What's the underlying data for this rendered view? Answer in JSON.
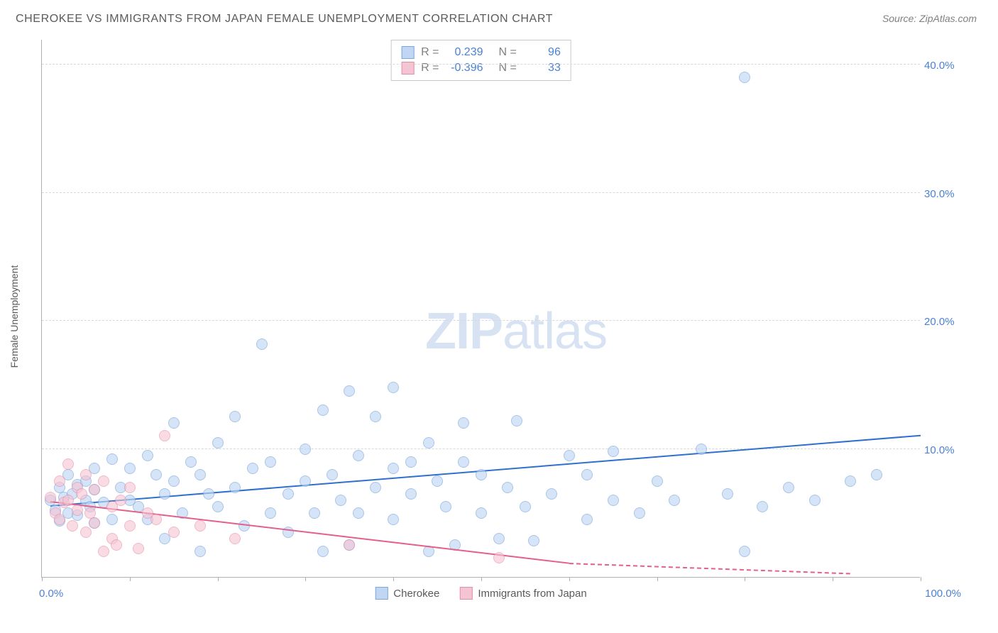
{
  "title": "CHEROKEE VS IMMIGRANTS FROM JAPAN FEMALE UNEMPLOYMENT CORRELATION CHART",
  "source": "Source: ZipAtlas.com",
  "ylabel": "Female Unemployment",
  "watermark_bold": "ZIP",
  "watermark_light": "atlas",
  "chart": {
    "type": "scatter",
    "xlim": [
      0,
      100
    ],
    "ylim": [
      0,
      42
    ],
    "y_ticks": [
      10,
      20,
      30,
      40
    ],
    "y_tick_labels": [
      "10.0%",
      "20.0%",
      "30.0%",
      "40.0%"
    ],
    "x_ticks": [
      0,
      10,
      20,
      30,
      40,
      50,
      60,
      70,
      80,
      90,
      100
    ],
    "x_min_label": "0.0%",
    "x_max_label": "100.0%",
    "background_color": "#ffffff",
    "grid_color": "#d8d8d8",
    "axis_color": "#b0b0b0",
    "tick_label_color": "#4a80d6",
    "point_radius": 8,
    "series": [
      {
        "name": "Cherokee",
        "label": "Cherokee",
        "fill": "#c0d6f2",
        "stroke": "#7aa7de",
        "fill_opacity": 0.65,
        "R": "0.239",
        "N": "96",
        "trend": {
          "x1": 1,
          "y1": 5.5,
          "x2": 100,
          "y2": 11.0,
          "color": "#2f6fd0",
          "dash_from_x": 100
        },
        "points": [
          [
            1,
            6.0
          ],
          [
            1.5,
            5.2
          ],
          [
            2,
            7.0
          ],
          [
            2,
            4.4
          ],
          [
            2.5,
            6.2
          ],
          [
            3,
            5.0
          ],
          [
            3,
            8.0
          ],
          [
            3.5,
            6.5
          ],
          [
            4,
            4.8
          ],
          [
            4,
            7.2
          ],
          [
            5,
            6.0
          ],
          [
            5,
            7.5
          ],
          [
            5.5,
            5.5
          ],
          [
            6,
            8.5
          ],
          [
            6,
            4.2
          ],
          [
            6,
            6.8
          ],
          [
            7,
            5.8
          ],
          [
            8,
            4.5
          ],
          [
            8,
            9.2
          ],
          [
            9,
            7.0
          ],
          [
            10,
            6.0
          ],
          [
            10,
            8.5
          ],
          [
            11,
            5.5
          ],
          [
            12,
            9.5
          ],
          [
            12,
            4.5
          ],
          [
            13,
            8.0
          ],
          [
            14,
            6.5
          ],
          [
            14,
            3.0
          ],
          [
            15,
            7.5
          ],
          [
            15,
            12.0
          ],
          [
            16,
            5.0
          ],
          [
            17,
            9.0
          ],
          [
            18,
            8.0
          ],
          [
            18,
            2.0
          ],
          [
            19,
            6.5
          ],
          [
            20,
            10.5
          ],
          [
            20,
            5.5
          ],
          [
            22,
            12.5
          ],
          [
            22,
            7.0
          ],
          [
            23,
            4.0
          ],
          [
            24,
            8.5
          ],
          [
            25,
            18.2
          ],
          [
            26,
            9.0
          ],
          [
            26,
            5.0
          ],
          [
            28,
            6.5
          ],
          [
            28,
            3.5
          ],
          [
            30,
            10.0
          ],
          [
            30,
            7.5
          ],
          [
            31,
            5.0
          ],
          [
            32,
            13.0
          ],
          [
            32,
            2.0
          ],
          [
            33,
            8.0
          ],
          [
            34,
            6.0
          ],
          [
            35,
            14.5
          ],
          [
            35,
            2.5
          ],
          [
            36,
            9.5
          ],
          [
            36,
            5.0
          ],
          [
            38,
            12.5
          ],
          [
            38,
            7.0
          ],
          [
            40,
            14.8
          ],
          [
            40,
            8.5
          ],
          [
            40,
            4.5
          ],
          [
            42,
            6.5
          ],
          [
            42,
            9.0
          ],
          [
            44,
            10.5
          ],
          [
            44,
            2.0
          ],
          [
            45,
            7.5
          ],
          [
            46,
            5.5
          ],
          [
            47,
            2.5
          ],
          [
            48,
            9.0
          ],
          [
            48,
            12.0
          ],
          [
            50,
            8.0
          ],
          [
            50,
            5.0
          ],
          [
            52,
            3.0
          ],
          [
            53,
            7.0
          ],
          [
            54,
            12.2
          ],
          [
            55,
            5.5
          ],
          [
            56,
            2.8
          ],
          [
            58,
            6.5
          ],
          [
            60,
            9.5
          ],
          [
            62,
            4.5
          ],
          [
            62,
            8.0
          ],
          [
            65,
            6.0
          ],
          [
            65,
            9.8
          ],
          [
            68,
            5.0
          ],
          [
            70,
            7.5
          ],
          [
            72,
            6.0
          ],
          [
            75,
            10.0
          ],
          [
            78,
            6.5
          ],
          [
            80,
            39.0
          ],
          [
            80,
            2.0
          ],
          [
            82,
            5.5
          ],
          [
            85,
            7.0
          ],
          [
            88,
            6.0
          ],
          [
            92,
            7.5
          ],
          [
            95,
            8.0
          ]
        ]
      },
      {
        "name": "Immigrants from Japan",
        "label": "Immigrants from Japan",
        "fill": "#f5c4d2",
        "stroke": "#e88ba8",
        "fill_opacity": 0.6,
        "R": "-0.396",
        "N": "33",
        "trend": {
          "x1": 1,
          "y1": 5.8,
          "x2": 60,
          "y2": 1.0,
          "color": "#e45f8a",
          "dash_from_x": 60,
          "dash_x2": 92,
          "dash_y2": 0.2
        },
        "points": [
          [
            1,
            6.2
          ],
          [
            1.5,
            5.0
          ],
          [
            2,
            7.5
          ],
          [
            2,
            4.5
          ],
          [
            2.5,
            5.8
          ],
          [
            3,
            8.8
          ],
          [
            3,
            6.0
          ],
          [
            3.5,
            4.0
          ],
          [
            4,
            7.0
          ],
          [
            4,
            5.2
          ],
          [
            4.5,
            6.5
          ],
          [
            5,
            3.5
          ],
          [
            5,
            8.0
          ],
          [
            5.5,
            5.0
          ],
          [
            6,
            6.8
          ],
          [
            6,
            4.2
          ],
          [
            7,
            7.5
          ],
          [
            7,
            2.0
          ],
          [
            8,
            5.5
          ],
          [
            8,
            3.0
          ],
          [
            8.5,
            2.5
          ],
          [
            9,
            6.0
          ],
          [
            10,
            4.0
          ],
          [
            10,
            7.0
          ],
          [
            11,
            2.2
          ],
          [
            12,
            5.0
          ],
          [
            13,
            4.5
          ],
          [
            14,
            11.0
          ],
          [
            15,
            3.5
          ],
          [
            18,
            4.0
          ],
          [
            22,
            3.0
          ],
          [
            35,
            2.5
          ],
          [
            52,
            1.5
          ]
        ]
      }
    ]
  }
}
